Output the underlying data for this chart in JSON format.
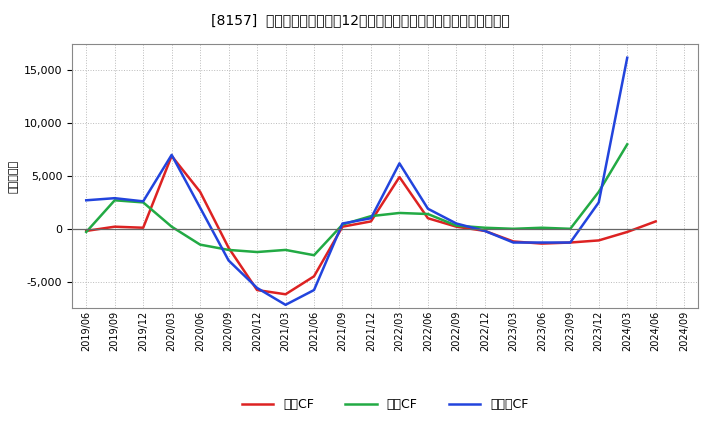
{
  "title": "[8157]  キャッシュフローの12か月移動合計の対前年同期増減額の推移",
  "ylabel": "（百万円）",
  "background_color": "#ffffff",
  "plot_bg_color": "#ffffff",
  "grid_color": "#bbbbbb",
  "x_labels": [
    "2019/06",
    "2019/09",
    "2019/12",
    "2020/03",
    "2020/06",
    "2020/09",
    "2020/12",
    "2021/03",
    "2021/06",
    "2021/09",
    "2021/12",
    "2022/03",
    "2022/06",
    "2022/09",
    "2022/12",
    "2023/03",
    "2023/06",
    "2023/09",
    "2023/12",
    "2024/03",
    "2024/06",
    "2024/09"
  ],
  "営業CF": [
    -200,
    200,
    100,
    6900,
    3500,
    -1800,
    -5800,
    -6200,
    -4500,
    200,
    700,
    4900,
    1000,
    200,
    -200,
    -1200,
    -1400,
    -1300,
    -1100,
    -300,
    700,
    null
  ],
  "投資CF": [
    -300,
    2700,
    2500,
    200,
    -1500,
    -2000,
    -2200,
    -2000,
    -2500,
    400,
    1200,
    1500,
    1400,
    300,
    100,
    0,
    100,
    0,
    3500,
    8000,
    null,
    null
  ],
  "フリーCF": [
    2700,
    2900,
    2600,
    7000,
    2000,
    -3000,
    -5600,
    -7200,
    -5800,
    500,
    1000,
    6200,
    1900,
    500,
    -200,
    -1300,
    -1300,
    -1300,
    2500,
    16200,
    null,
    null
  ],
  "ylim": [
    -7500,
    17500
  ],
  "yticks": [
    -5000,
    0,
    5000,
    10000,
    15000
  ],
  "colors": {
    "営業CF": "#dd2222",
    "投資CF": "#22aa44",
    "フリーCF": "#2244dd"
  },
  "linewidth": 1.8
}
